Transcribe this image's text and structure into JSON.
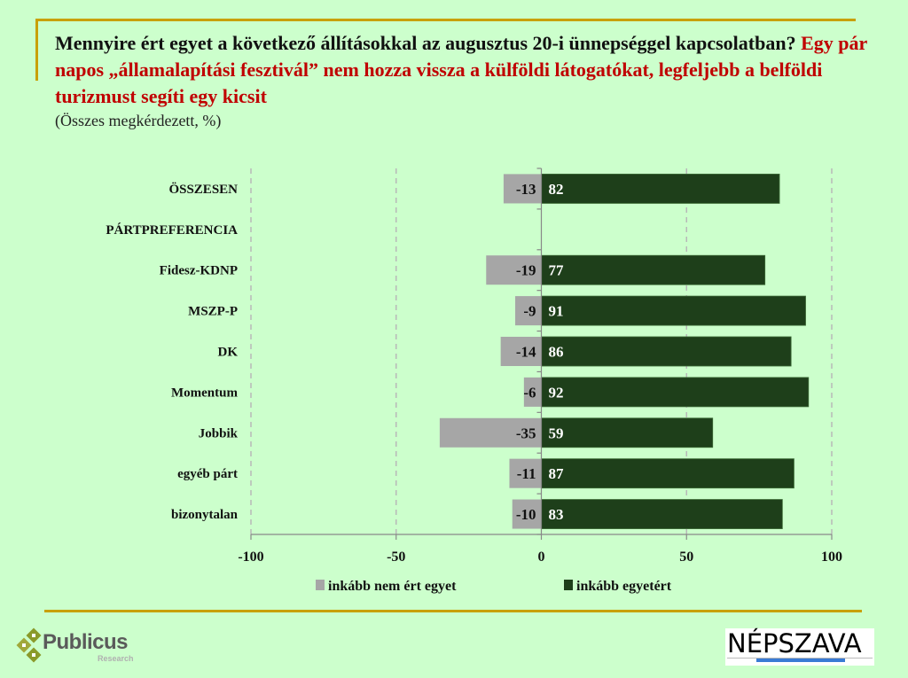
{
  "header": {
    "title_black": "Mennyire ért egyet a következő állításokkal az augusztus 20-i ünnepséggel kapcsolatban?",
    "title_red": "Egy pár napos „államalapítási fesztivál” nem hozza vissza a külföldi látogatókat, legfeljebb a belföldi turizmust segíti egy kicsit",
    "subtitle": "(Összes megkérdezett, %)"
  },
  "colors": {
    "background": "#ccffcc",
    "disagree": "#a6a6a6",
    "agree": "#1e3f1a",
    "accent_rule": "#c8a000",
    "title_red": "#c00000"
  },
  "chart_data": {
    "type": "bar",
    "orientation": "horizontal",
    "stacked": "diverging",
    "title": "",
    "xlabel": "",
    "ylabel": "",
    "xlim": [
      -100,
      100
    ],
    "x_ticks": [
      -100,
      -50,
      0,
      50,
      100
    ],
    "x_tick_labels": [
      "-100",
      "-50",
      "0",
      "50",
      "100"
    ],
    "grid": "vertical dashed",
    "legend_position": "bottom",
    "categories": [
      "ÖSSZESEN",
      "PÁRTPREFERENCIA",
      "Fidesz-KDNP",
      "MSZP-P",
      "DK",
      "Momentum",
      "Jobbik",
      "egyéb párt",
      "bizonytalan"
    ],
    "series": [
      {
        "name": "inkább nem ért egyet",
        "color": "#a6a6a6",
        "values": [
          -13,
          null,
          -19,
          -9,
          -14,
          -6,
          -35,
          -11,
          -10
        ]
      },
      {
        "name": "inkább egyetért",
        "color": "#1e3f1a",
        "values": [
          82,
          null,
          77,
          91,
          86,
          92,
          59,
          87,
          83
        ]
      }
    ]
  },
  "footer": {
    "publicus_name": "Publicus",
    "publicus_sub": "Research",
    "nepszava_name": "NÉPSZAVA"
  }
}
